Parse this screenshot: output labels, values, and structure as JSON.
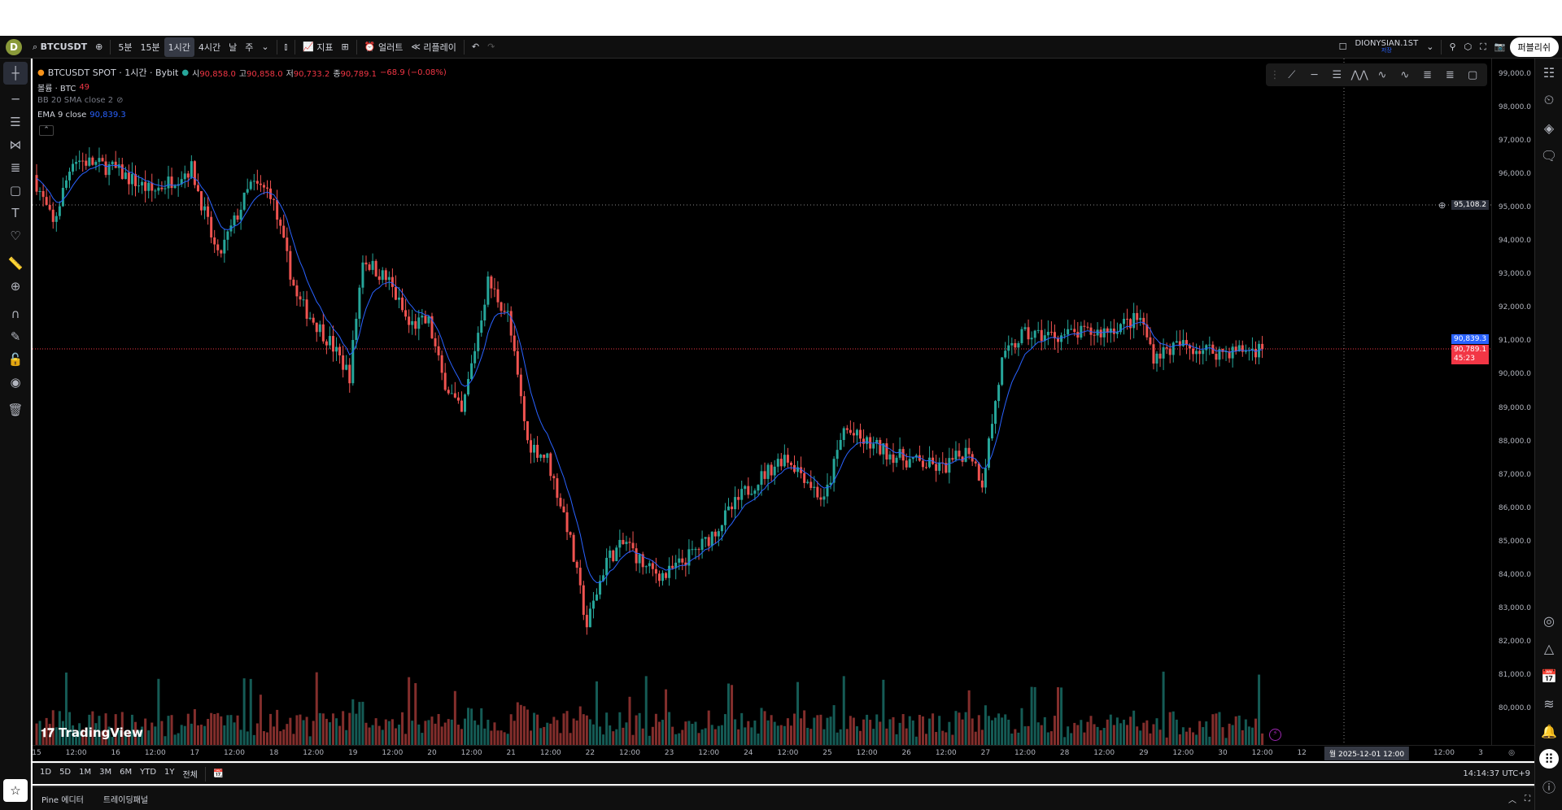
{
  "toolbar": {
    "avatar": "D",
    "symbol": "BTCUSDT",
    "intervals": [
      "5분",
      "15분",
      "1시간",
      "4시간",
      "날",
      "주"
    ],
    "active_interval": "1시간",
    "indicators": "지표",
    "alert": "얼러트",
    "replay": "리플레이",
    "layout_name": "DIONYSIAN.1ST",
    "layout_status": "저장",
    "publish": "퍼블리쉬"
  },
  "legend": {
    "title": "BTCUSDT SPOT · 1시간 · Bybit",
    "o_label": "시",
    "o": "90,858.0",
    "h_label": "고",
    "h": "90,858.0",
    "l_label": "저",
    "l": "90,733.2",
    "c_label": "종",
    "c": "90,789.1",
    "change": "−68.9 (−0.08%)",
    "volume_label": "볼륨 · BTC",
    "volume": "49",
    "bb": "BB 20 SMA close 2",
    "ema_label": "EMA 9 close",
    "ema": "90,839.3"
  },
  "price_axis": {
    "ticks": [
      "99,000.0",
      "98,000.0",
      "97,000.0",
      "96,000.0",
      "95,000.0",
      "94,000.0",
      "93,000.0",
      "92,000.0",
      "91,000.0",
      "90,000.0",
      "89,000.0",
      "88,000.0",
      "87,000.0",
      "86,000.0",
      "85,000.0",
      "84,000.0",
      "83,000.0",
      "82,000.0",
      "81,000.0",
      "80,000.0"
    ],
    "crosshair_price": "95,108.2",
    "ema_badge": "90,839.3",
    "last_price": "90,789.1",
    "countdown": "45:23"
  },
  "time_axis": {
    "ticks": [
      "15",
      "12:00",
      "16",
      "12:00",
      "17",
      "12:00",
      "18",
      "12:00",
      "19",
      "12:00",
      "20",
      "12:00",
      "21",
      "12:00",
      "22",
      "12:00",
      "23",
      "12:00",
      "24",
      "12:00",
      "25",
      "12:00",
      "26",
      "12:00",
      "27",
      "12:00",
      "28",
      "12:00",
      "29",
      "12:00",
      "30",
      "12:00",
      "12"
    ],
    "crosshair_label": "월 2025-12-01   12:00",
    "after": [
      "12:00",
      "3"
    ]
  },
  "range_bar": {
    "ranges": [
      "1D",
      "5D",
      "1M",
      "3M",
      "6M",
      "YTD",
      "1Y",
      "전체"
    ],
    "clock": "14:14:37 UTC+9"
  },
  "pine_bar": {
    "tabs": [
      "Pine 에디터",
      "트레이딩패널"
    ]
  },
  "watermark": "TradingView",
  "scale_buttons": [
    "A",
    "L"
  ],
  "colors": {
    "up": "#26a69a",
    "down": "#ef5350",
    "ema": "#2962ff",
    "bg": "#000000"
  },
  "price_path": [
    [
      0,
      96000
    ],
    [
      6,
      94500
    ],
    [
      12,
      96500
    ],
    [
      24,
      96200
    ],
    [
      36,
      95500
    ],
    [
      48,
      96200
    ],
    [
      56,
      93500
    ],
    [
      66,
      95700
    ],
    [
      72,
      95500
    ],
    [
      80,
      92300
    ],
    [
      90,
      91000
    ],
    [
      96,
      90000
    ],
    [
      100,
      93500
    ],
    [
      108,
      92800
    ],
    [
      114,
      91500
    ],
    [
      120,
      91600
    ],
    [
      124,
      90000
    ],
    [
      130,
      88800
    ],
    [
      138,
      92800
    ],
    [
      144,
      91800
    ],
    [
      150,
      88000
    ],
    [
      156,
      87500
    ],
    [
      162,
      85500
    ],
    [
      168,
      82500
    ],
    [
      174,
      84500
    ],
    [
      180,
      85000
    ],
    [
      186,
      84200
    ],
    [
      192,
      84000
    ],
    [
      204,
      85000
    ],
    [
      216,
      86500
    ],
    [
      228,
      87600
    ],
    [
      234,
      87000
    ],
    [
      240,
      86200
    ],
    [
      246,
      88400
    ],
    [
      252,
      88000
    ],
    [
      264,
      87500
    ],
    [
      276,
      87200
    ],
    [
      284,
      87800
    ],
    [
      288,
      86800
    ],
    [
      294,
      90400
    ],
    [
      300,
      91200
    ],
    [
      312,
      91200
    ],
    [
      324,
      91300
    ],
    [
      336,
      91700
    ],
    [
      340,
      90600
    ],
    [
      348,
      90900
    ],
    [
      360,
      90700
    ],
    [
      372,
      90789
    ]
  ]
}
